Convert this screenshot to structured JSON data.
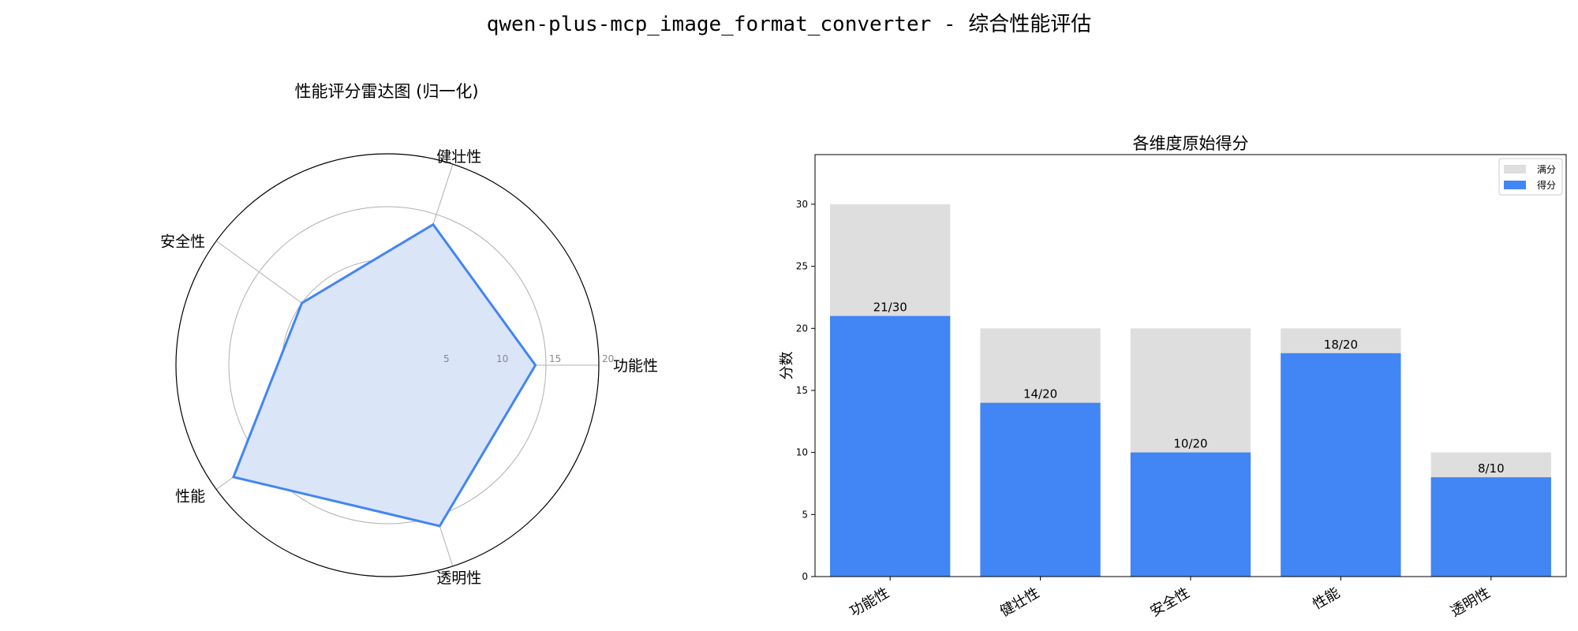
{
  "suptitle": "qwen-plus-mcp_image_format_converter - 综合性能评估",
  "chart_data": [
    {
      "type": "radar",
      "title": "性能评分雷达图 (归一化)",
      "axes": [
        "功能性",
        "健壮性",
        "安全性",
        "性能",
        "透明性"
      ],
      "values": [
        14,
        14,
        10,
        18,
        16
      ],
      "rmax": 20,
      "rticks": [
        5,
        10,
        15,
        20
      ],
      "color": "#4285F4",
      "fill": "#dae5f8",
      "grid": true
    },
    {
      "type": "bar",
      "title": "各维度原始得分",
      "categories": [
        "功能性",
        "健壮性",
        "安全性",
        "性能",
        "透明性"
      ],
      "series": [
        {
          "name": "满分",
          "values": [
            30,
            20,
            20,
            20,
            10
          ],
          "color": "#dedede"
        },
        {
          "name": "得分",
          "values": [
            21,
            14,
            10,
            18,
            8
          ],
          "color": "#4285F4"
        }
      ],
      "data_labels": [
        "21/30",
        "14/20",
        "10/20",
        "18/20",
        "8/10"
      ],
      "xlabel": "",
      "ylabel": "分数",
      "ylim": [
        0,
        34
      ],
      "yticks": [
        0,
        5,
        10,
        15,
        20,
        25,
        30
      ],
      "legend": "top-right",
      "grid": false
    }
  ]
}
